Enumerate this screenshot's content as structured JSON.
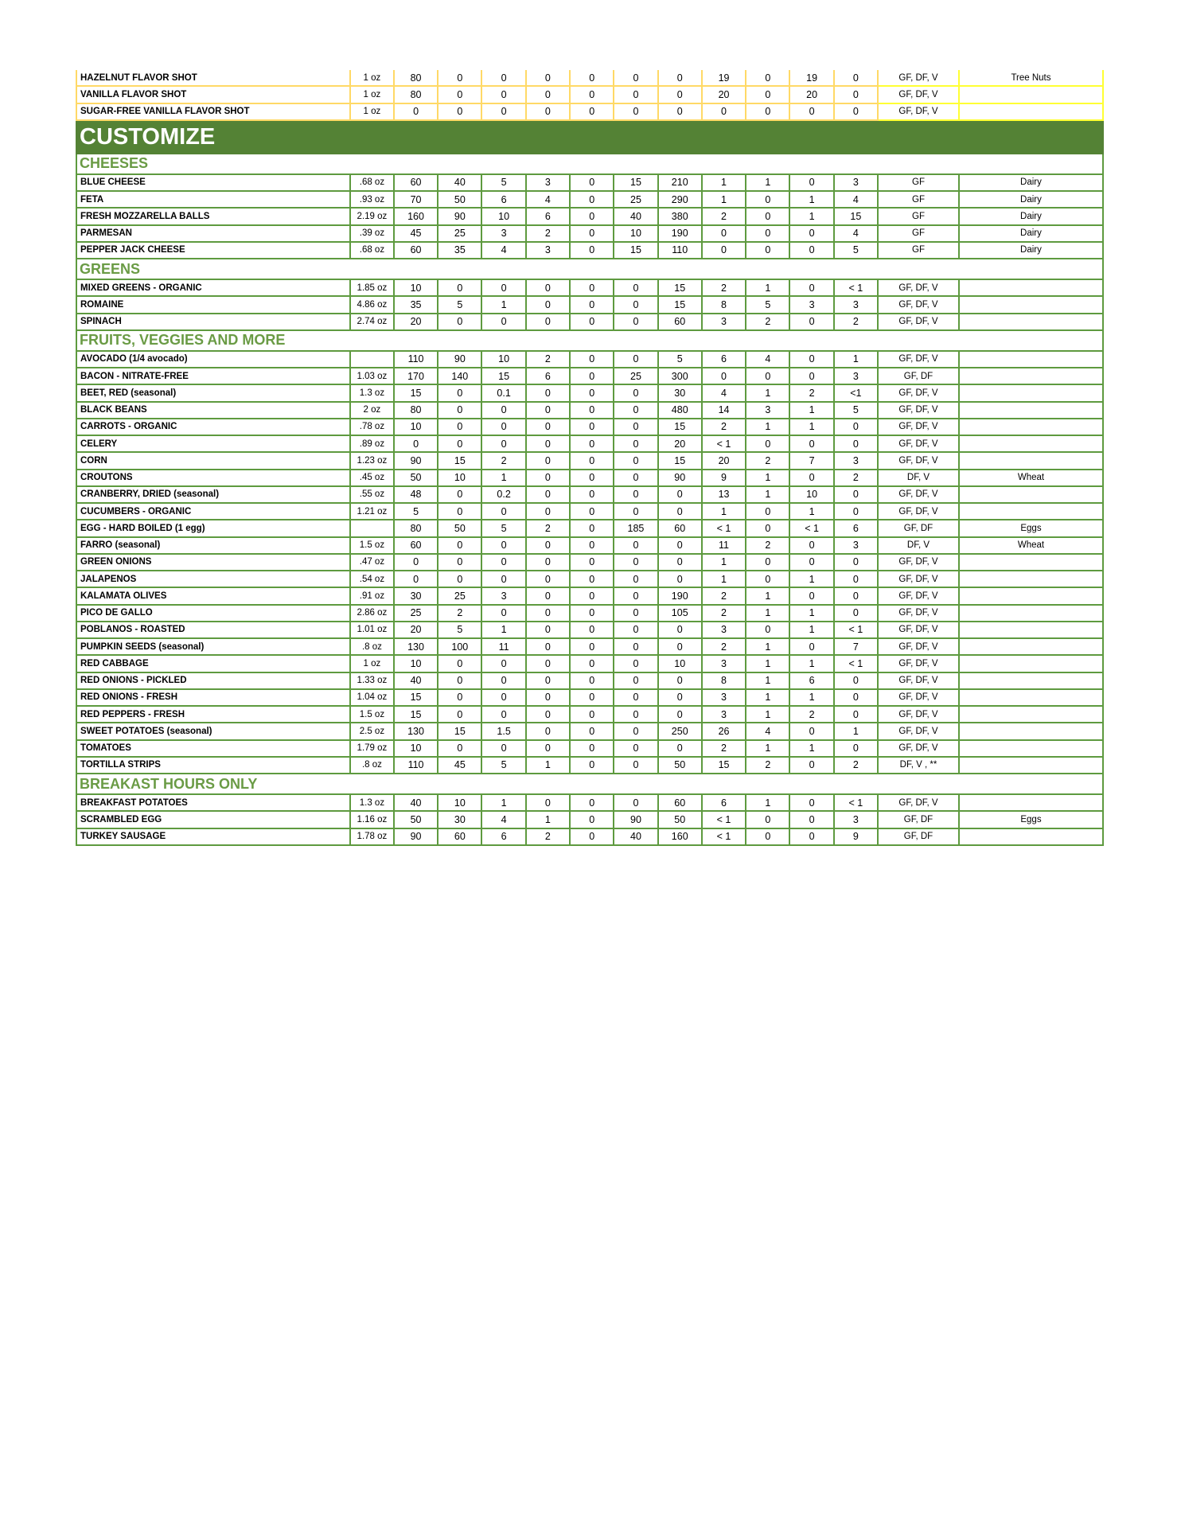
{
  "colors": {
    "band": "#548235",
    "section_text": "#6a9b45",
    "green_border": "#5e9a3f",
    "yellow_border": "#ffd966"
  },
  "top_rows": [
    [
      "HAZELNUT FLAVOR SHOT",
      "1 oz",
      "80",
      "0",
      "0",
      "0",
      "0",
      "0",
      "0",
      "19",
      "0",
      "19",
      "0",
      "GF, DF, V",
      "Tree Nuts"
    ],
    [
      "VANILLA FLAVOR SHOT",
      "1 oz",
      "80",
      "0",
      "0",
      "0",
      "0",
      "0",
      "0",
      "20",
      "0",
      "20",
      "0",
      "GF, DF, V",
      ""
    ],
    [
      "SUGAR-FREE VANILLA FLAVOR SHOT",
      "1 oz",
      "0",
      "0",
      "0",
      "0",
      "0",
      "0",
      "0",
      "0",
      "0",
      "0",
      "0",
      "GF, DF, V",
      ""
    ]
  ],
  "band_title": "CUSTOMIZE",
  "sections": [
    {
      "title": "CHEESES",
      "rows": [
        [
          "BLUE CHEESE",
          ".68 oz",
          "60",
          "40",
          "5",
          "3",
          "0",
          "15",
          "210",
          "1",
          "1",
          "0",
          "3",
          "GF",
          "Dairy"
        ],
        [
          "FETA",
          ".93 oz",
          "70",
          "50",
          "6",
          "4",
          "0",
          "25",
          "290",
          "1",
          "0",
          "1",
          "4",
          "GF",
          "Dairy"
        ],
        [
          "FRESH MOZZARELLA BALLS",
          "2.19 oz",
          "160",
          "90",
          "10",
          "6",
          "0",
          "40",
          "380",
          "2",
          "0",
          "1",
          "15",
          "GF",
          "Dairy"
        ],
        [
          "PARMESAN",
          ".39 oz",
          "45",
          "25",
          "3",
          "2",
          "0",
          "10",
          "190",
          "0",
          "0",
          "0",
          "4",
          "GF",
          "Dairy"
        ],
        [
          "PEPPER JACK CHEESE",
          ".68 oz",
          "60",
          "35",
          "4",
          "3",
          "0",
          "15",
          "110",
          "0",
          "0",
          "0",
          "5",
          "GF",
          "Dairy"
        ]
      ]
    },
    {
      "title": "GREENS",
      "rows": [
        [
          "MIXED GREENS - ORGANIC",
          "1.85 oz",
          "10",
          "0",
          "0",
          "0",
          "0",
          "0",
          "15",
          "2",
          "1",
          "0",
          "< 1",
          "GF, DF, V",
          ""
        ],
        [
          "ROMAINE",
          "4.86 oz",
          "35",
          "5",
          "1",
          "0",
          "0",
          "0",
          "15",
          "8",
          "5",
          "3",
          "3",
          "GF, DF, V",
          ""
        ],
        [
          "SPINACH",
          "2.74 oz",
          "20",
          "0",
          "0",
          "0",
          "0",
          "0",
          "60",
          "3",
          "2",
          "0",
          "2",
          "GF, DF, V",
          ""
        ]
      ]
    },
    {
      "title": "FRUITS, VEGGIES AND MORE",
      "rows": [
        [
          "AVOCADO (1/4 avocado)",
          "",
          "110",
          "90",
          "10",
          "2",
          "0",
          "0",
          "5",
          "6",
          "4",
          "0",
          "1",
          "GF, DF, V",
          ""
        ],
        [
          "BACON - NITRATE-FREE",
          "1.03 oz",
          "170",
          "140",
          "15",
          "6",
          "0",
          "25",
          "300",
          "0",
          "0",
          "0",
          "3",
          "GF, DF",
          ""
        ],
        [
          "BEET, RED (seasonal)",
          "1.3 oz",
          "15",
          "0",
          "0.1",
          "0",
          "0",
          "0",
          "30",
          "4",
          "1",
          "2",
          "<1",
          "GF, DF, V",
          ""
        ],
        [
          "BLACK BEANS",
          "2 oz",
          "80",
          "0",
          "0",
          "0",
          "0",
          "0",
          "480",
          "14",
          "3",
          "1",
          "5",
          "GF, DF, V",
          ""
        ],
        [
          "CARROTS - ORGANIC",
          ".78 oz",
          "10",
          "0",
          "0",
          "0",
          "0",
          "0",
          "15",
          "2",
          "1",
          "1",
          "0",
          "GF, DF, V",
          ""
        ],
        [
          "CELERY",
          ".89 oz",
          "0",
          "0",
          "0",
          "0",
          "0",
          "0",
          "20",
          "< 1",
          "0",
          "0",
          "0",
          "GF, DF, V",
          ""
        ],
        [
          "CORN",
          "1.23 oz",
          "90",
          "15",
          "2",
          "0",
          "0",
          "0",
          "15",
          "20",
          "2",
          "7",
          "3",
          "GF, DF, V",
          ""
        ],
        [
          "CROUTONS",
          ".45 oz",
          "50",
          "10",
          "1",
          "0",
          "0",
          "0",
          "90",
          "9",
          "1",
          "0",
          "2",
          "DF, V",
          "Wheat"
        ],
        [
          "CRANBERRY, DRIED (seasonal)",
          ".55 oz",
          "48",
          "0",
          "0.2",
          "0",
          "0",
          "0",
          "0",
          "13",
          "1",
          "10",
          "0",
          "GF, DF, V",
          ""
        ],
        [
          "CUCUMBERS - ORGANIC",
          "1.21 oz",
          "5",
          "0",
          "0",
          "0",
          "0",
          "0",
          "0",
          "1",
          "0",
          "1",
          "0",
          "GF, DF, V",
          ""
        ],
        [
          "EGG - HARD BOILED (1 egg)",
          "",
          "80",
          "50",
          "5",
          "2",
          "0",
          "185",
          "60",
          "< 1",
          "0",
          "< 1",
          "6",
          "GF, DF",
          "Eggs"
        ],
        [
          "FARRO (seasonal)",
          "1.5 oz",
          "60",
          "0",
          "0",
          "0",
          "0",
          "0",
          "0",
          "11",
          "2",
          "0",
          "3",
          "DF, V",
          "Wheat"
        ],
        [
          "GREEN ONIONS",
          ".47 oz",
          "0",
          "0",
          "0",
          "0",
          "0",
          "0",
          "0",
          "1",
          "0",
          "0",
          "0",
          "GF, DF, V",
          ""
        ],
        [
          "JALAPENOS",
          ".54 oz",
          "0",
          "0",
          "0",
          "0",
          "0",
          "0",
          "0",
          "1",
          "0",
          "1",
          "0",
          "GF, DF, V",
          ""
        ],
        [
          "KALAMATA OLIVES",
          ".91 oz",
          "30",
          "25",
          "3",
          "0",
          "0",
          "0",
          "190",
          "2",
          "1",
          "0",
          "0",
          "GF, DF, V",
          ""
        ],
        [
          "PICO DE GALLO",
          "2.86 oz",
          "25",
          "2",
          "0",
          "0",
          "0",
          "0",
          "105",
          "2",
          "1",
          "1",
          "0",
          "GF, DF, V",
          ""
        ],
        [
          "POBLANOS - ROASTED",
          "1.01 oz",
          "20",
          "5",
          "1",
          "0",
          "0",
          "0",
          "0",
          "3",
          "0",
          "1",
          "< 1",
          "GF, DF, V",
          ""
        ],
        [
          "PUMPKIN SEEDS (seasonal)",
          ".8 oz",
          "130",
          "100",
          "11",
          "0",
          "0",
          "0",
          "0",
          "2",
          "1",
          "0",
          "7",
          "GF, DF, V",
          ""
        ],
        [
          "RED CABBAGE",
          "1 oz",
          "10",
          "0",
          "0",
          "0",
          "0",
          "0",
          "10",
          "3",
          "1",
          "1",
          "< 1",
          "GF, DF, V",
          ""
        ],
        [
          "RED ONIONS - PICKLED",
          "1.33 oz",
          "40",
          "0",
          "0",
          "0",
          "0",
          "0",
          "0",
          "8",
          "1",
          "6",
          "0",
          "GF, DF, V",
          ""
        ],
        [
          "RED ONIONS - FRESH",
          "1.04 oz",
          "15",
          "0",
          "0",
          "0",
          "0",
          "0",
          "0",
          "3",
          "1",
          "1",
          "0",
          "GF, DF, V",
          ""
        ],
        [
          "RED PEPPERS - FRESH",
          "1.5 oz",
          "15",
          "0",
          "0",
          "0",
          "0",
          "0",
          "0",
          "3",
          "1",
          "2",
          "0",
          "GF, DF, V",
          ""
        ],
        [
          "SWEET POTATOES (seasonal)",
          "2.5 oz",
          "130",
          "15",
          "1.5",
          "0",
          "0",
          "0",
          "250",
          "26",
          "4",
          "0",
          "1",
          "GF, DF, V",
          ""
        ],
        [
          "TOMATOES",
          "1.79 oz",
          "10",
          "0",
          "0",
          "0",
          "0",
          "0",
          "0",
          "2",
          "1",
          "1",
          "0",
          "GF, DF, V",
          ""
        ],
        [
          "TORTILLA STRIPS",
          ".8 oz",
          "110",
          "45",
          "5",
          "1",
          "0",
          "0",
          "50",
          "15",
          "2",
          "0",
          "2",
          "DF, V , **",
          ""
        ]
      ]
    },
    {
      "title": "BREAKAST HOURS ONLY",
      "rows": [
        [
          "BREAKFAST POTATOES",
          "1.3 oz",
          "40",
          "10",
          "1",
          "0",
          "0",
          "0",
          "60",
          "6",
          "1",
          "0",
          "< 1",
          "GF, DF, V",
          ""
        ],
        [
          "SCRAMBLED EGG",
          "1.16 oz",
          "50",
          "30",
          "4",
          "1",
          "0",
          "90",
          "50",
          "< 1",
          "0",
          "0",
          "3",
          "GF, DF",
          "Eggs"
        ],
        [
          "TURKEY SAUSAGE",
          "1.78 oz",
          "90",
          "60",
          "6",
          "2",
          "0",
          "40",
          "160",
          "< 1",
          "0",
          "0",
          "9",
          "GF, DF",
          ""
        ]
      ]
    }
  ]
}
